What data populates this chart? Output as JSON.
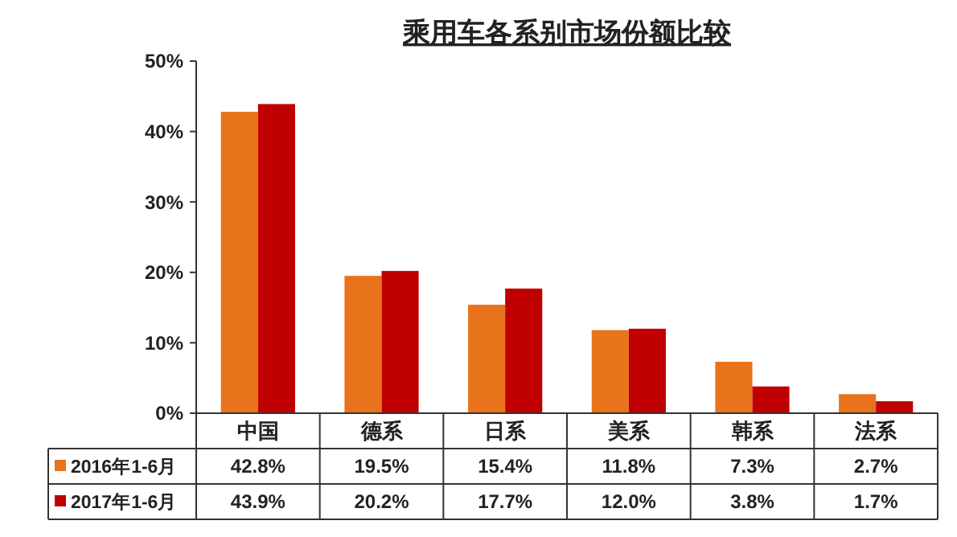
{
  "chart_data": {
    "type": "bar",
    "title": "乘用车各系别市场份额比较",
    "categories": [
      "中国",
      "德系",
      "日系",
      "美系",
      "韩系",
      "法系"
    ],
    "series": [
      {
        "name": "2016年1-6月",
        "color": "#e8731a",
        "values": [
          42.8,
          19.5,
          15.4,
          11.8,
          7.3,
          2.7
        ],
        "value_labels": [
          "42.8%",
          "19.5%",
          "15.4%",
          "11.8%",
          "7.3%",
          "2.7%"
        ]
      },
      {
        "name": "2017年1-6月",
        "color": "#c00000",
        "values": [
          43.9,
          20.2,
          17.7,
          12.0,
          3.8,
          1.7
        ],
        "value_labels": [
          "43.9%",
          "20.2%",
          "17.7%",
          "12.0%",
          "3.8%",
          "1.7%"
        ]
      }
    ],
    "ylim": [
      0,
      50
    ],
    "yticks": [
      {
        "value": 0,
        "label": "0%"
      },
      {
        "value": 10,
        "label": "10%"
      },
      {
        "value": 20,
        "label": "20%"
      },
      {
        "value": 30,
        "label": "30%"
      },
      {
        "value": 40,
        "label": "40%"
      },
      {
        "value": 50,
        "label": "50%"
      }
    ],
    "grid": false,
    "legend": "bottom"
  }
}
